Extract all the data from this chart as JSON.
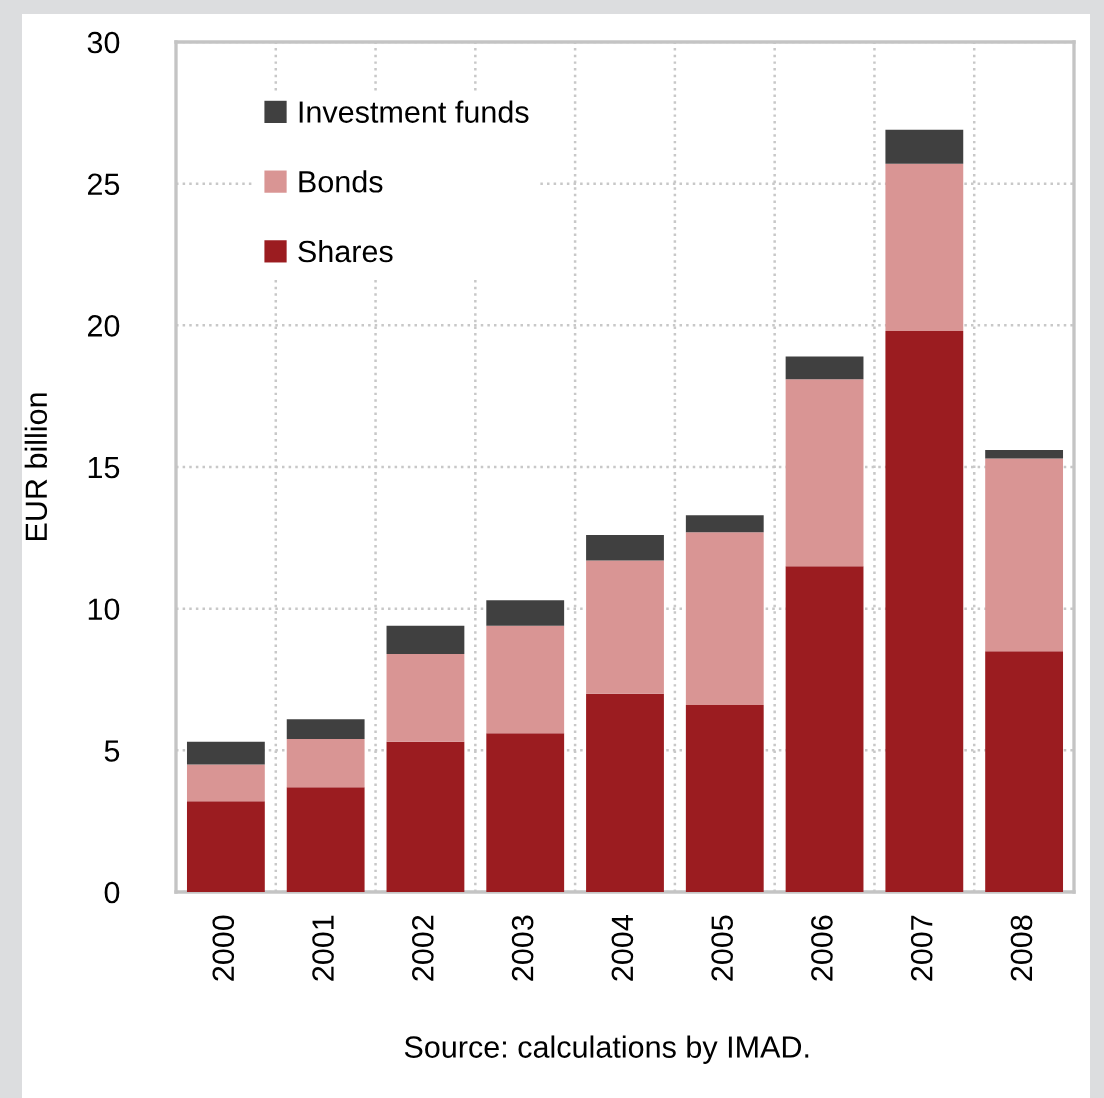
{
  "chart_data": {
    "type": "bar",
    "stacked": true,
    "categories": [
      "2000",
      "2001",
      "2002",
      "2003",
      "2004",
      "2005",
      "2006",
      "2007",
      "2008"
    ],
    "series": [
      {
        "name": "Shares",
        "color": "#9b1c20",
        "values": [
          3.2,
          3.7,
          5.3,
          5.6,
          7.0,
          6.6,
          11.5,
          19.8,
          8.5
        ]
      },
      {
        "name": "Bonds",
        "color": "#d99594",
        "values": [
          1.3,
          1.7,
          3.1,
          3.8,
          4.7,
          6.1,
          6.6,
          5.9,
          6.8
        ]
      },
      {
        "name": "Investment funds",
        "color": "#404040",
        "values": [
          0.8,
          0.7,
          1.0,
          0.9,
          0.9,
          0.6,
          0.8,
          1.2,
          0.3
        ]
      }
    ],
    "ylabel": "EUR billion",
    "ylim": [
      0,
      30
    ],
    "yticks": [
      0,
      5,
      10,
      15,
      20,
      25,
      30
    ],
    "grid": true,
    "legend": "top left",
    "annotations": [
      "Source: calculations by IMAD."
    ]
  }
}
